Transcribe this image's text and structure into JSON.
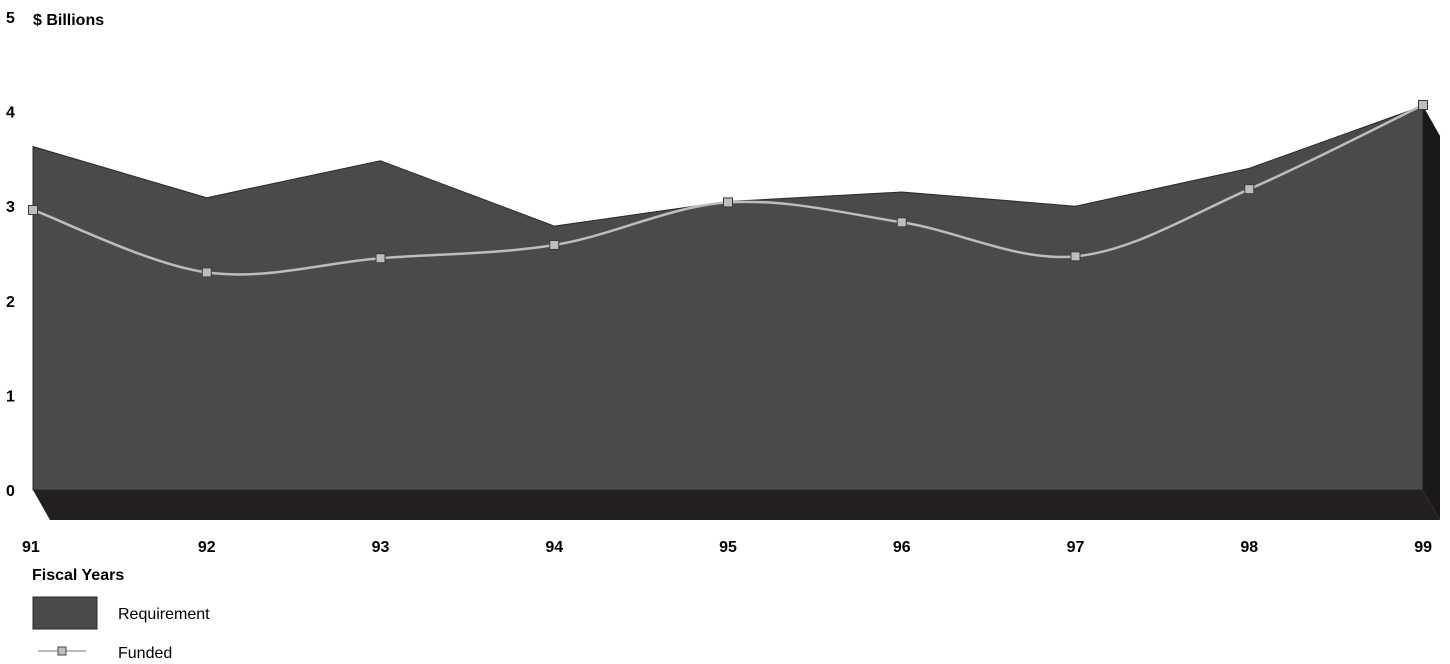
{
  "chart_data": {
    "type": "area",
    "title": "",
    "ylabel": "$ Billions",
    "xlabel": "Fiscal Years",
    "x": [
      "91",
      "92",
      "93",
      "94",
      "95",
      "96",
      "97",
      "98",
      "99"
    ],
    "ylim": [
      0,
      5
    ],
    "yticks": [
      "0",
      "1",
      "2",
      "3",
      "4",
      "5"
    ],
    "grid": false,
    "legend_position": "bottom-left",
    "series": [
      {
        "name": "Requirement",
        "kind": "area",
        "color": "#4a4a4a",
        "values": [
          3.63,
          3.09,
          3.48,
          2.79,
          3.05,
          3.15,
          3.0,
          3.4,
          4.06
        ]
      },
      {
        "name": "Funded",
        "kind": "line",
        "color": "#bdbdbd",
        "values": [
          2.96,
          2.3,
          2.45,
          2.59,
          3.04,
          2.83,
          2.47,
          3.18,
          4.07
        ]
      }
    ]
  }
}
